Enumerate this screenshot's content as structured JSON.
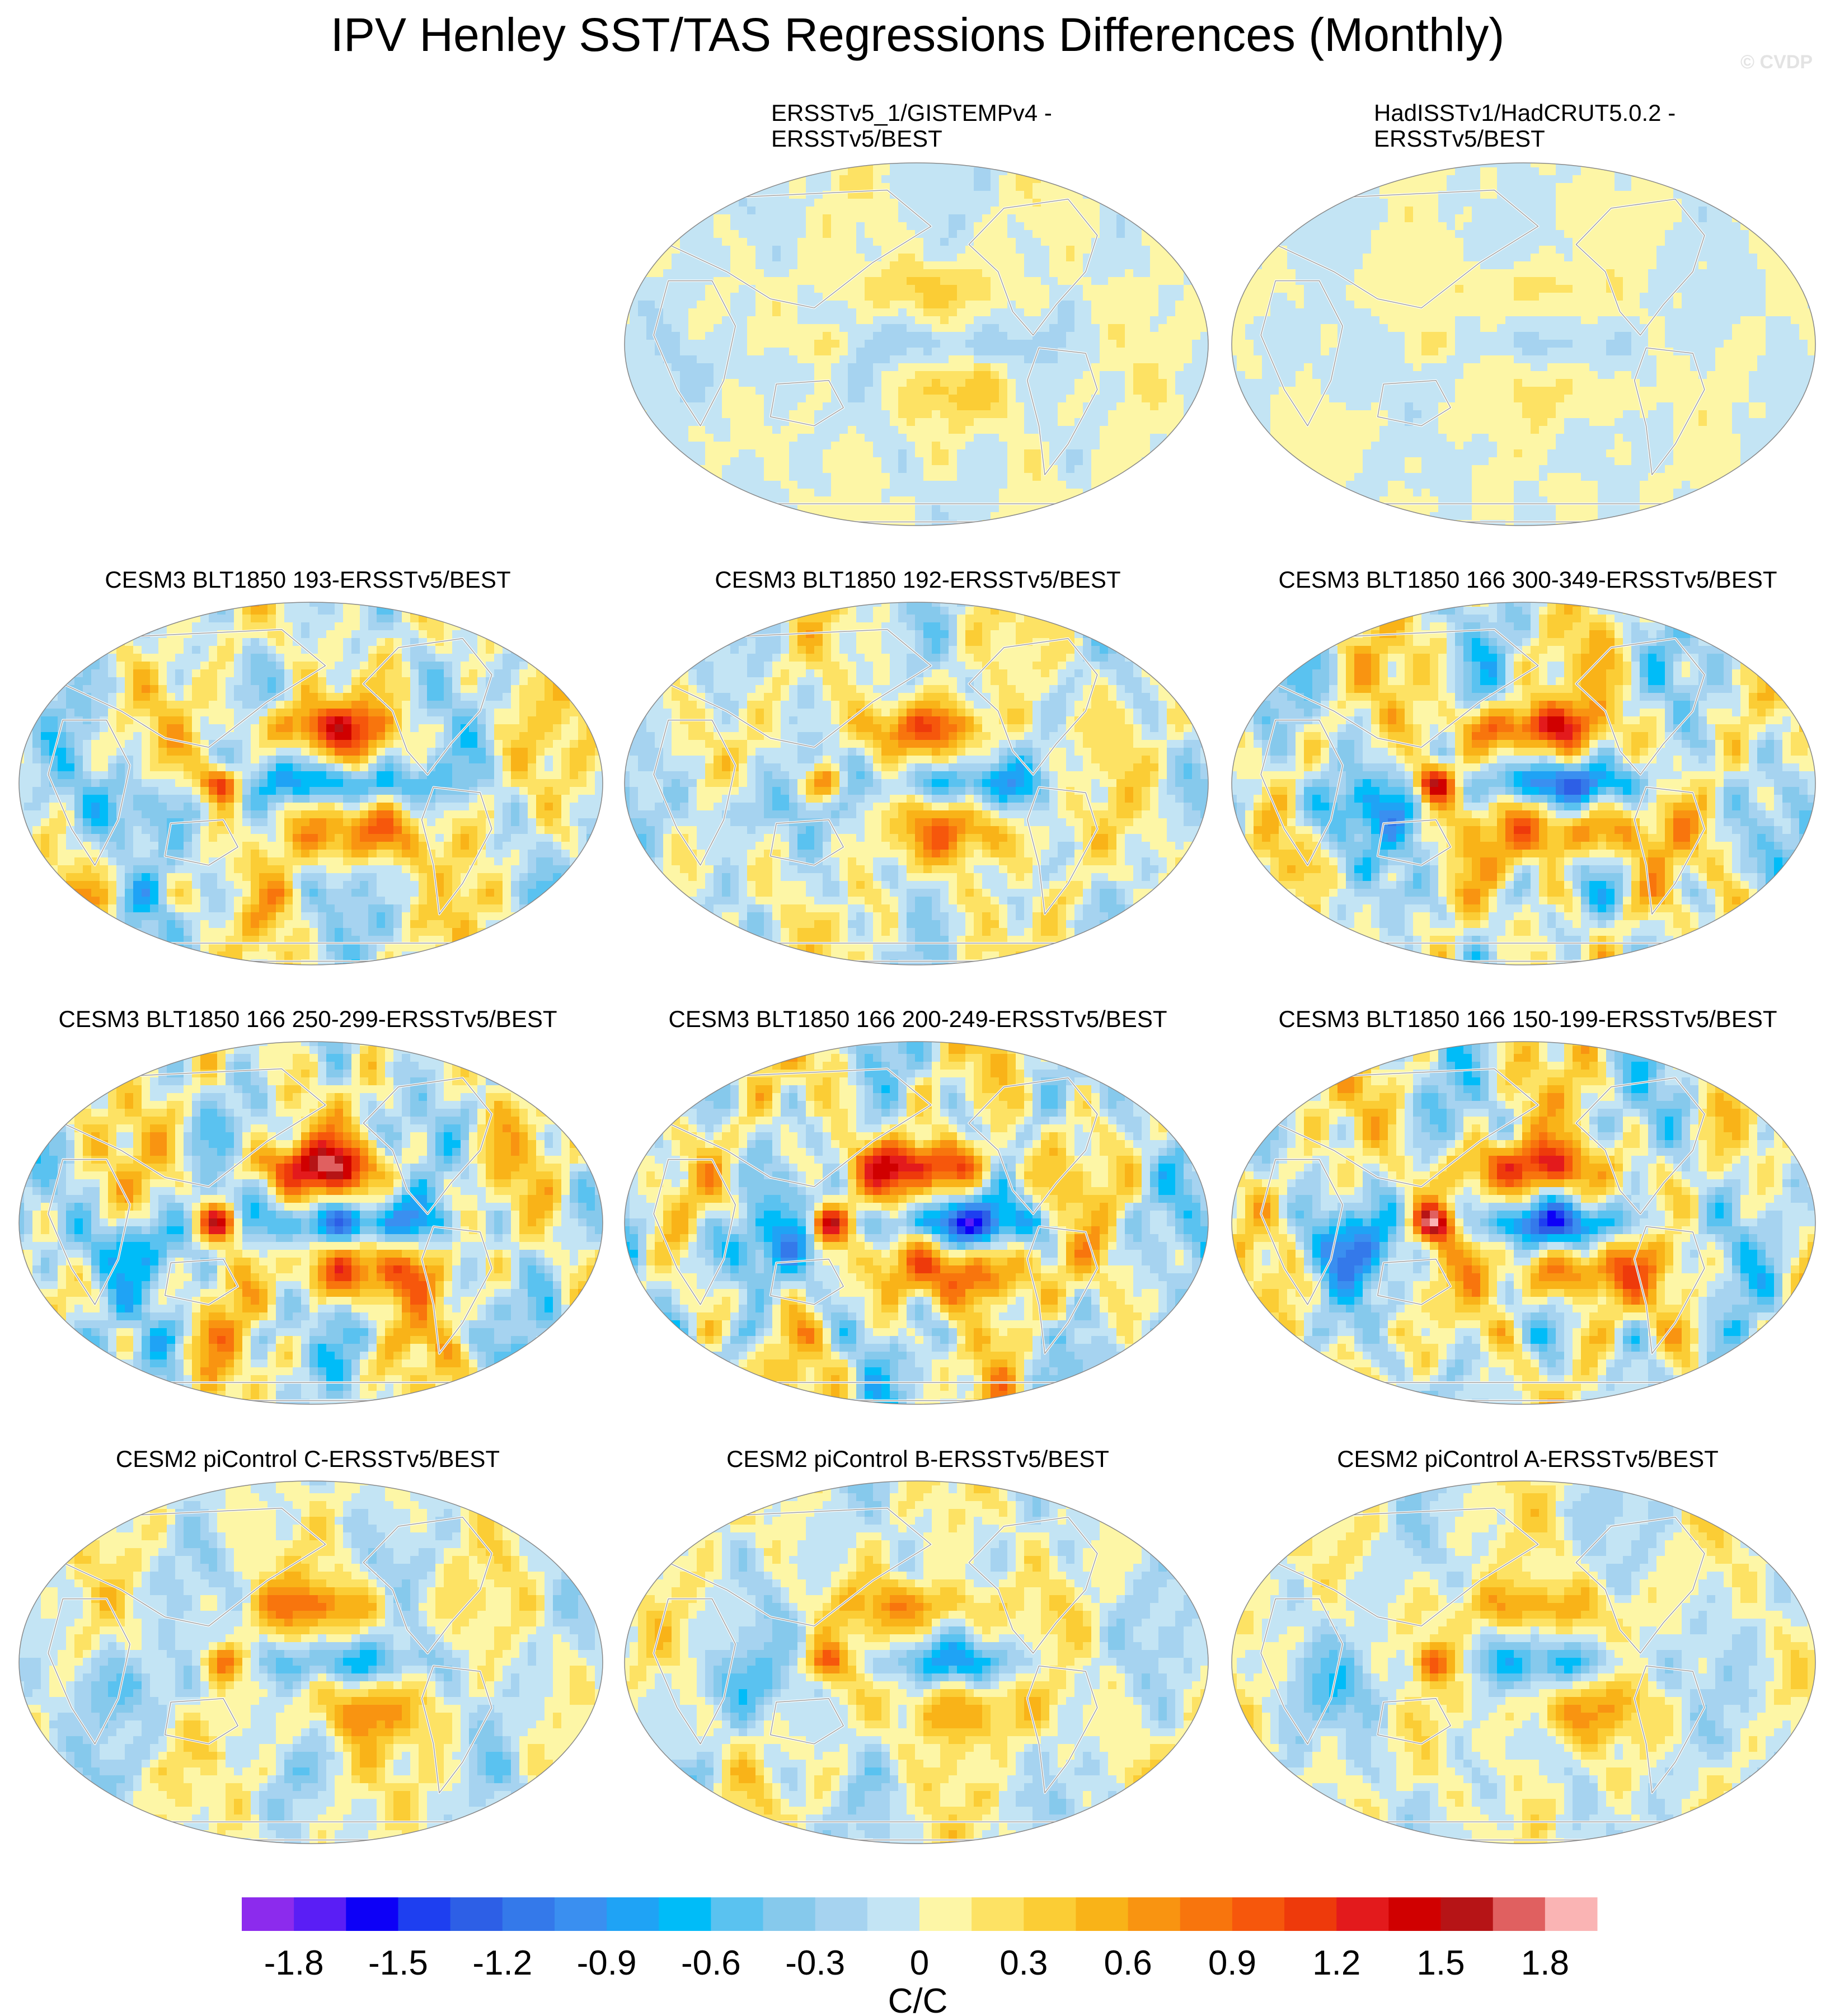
{
  "figure": {
    "title": "IPV Henley SST/TAS Regressions Differences (Monthly)",
    "watermark": "© CVDP"
  },
  "panels": [
    {
      "id": "p-ersst-gistemp",
      "row": 0,
      "col": 1,
      "title_lines": [
        "ERSSTv5_1/GISTEMPv4 -",
        "ERSSTv5/BEST"
      ],
      "pattern_amplitude": 0.5
    },
    {
      "id": "p-hadisst-hadcrut",
      "row": 0,
      "col": 2,
      "title_lines": [
        "HadISSTv1/HadCRUT5.0.2 -",
        "ERSSTv5/BEST"
      ],
      "pattern_amplitude": 0.3
    },
    {
      "id": "p-cesm3-193",
      "row": 1,
      "col": 0,
      "title_lines": [
        "CESM3 BLT1850 193-ERSSTv5/BEST"
      ],
      "pattern_amplitude": 1.5
    },
    {
      "id": "p-cesm3-192",
      "row": 1,
      "col": 1,
      "title_lines": [
        "CESM3 BLT1850 192-ERSSTv5/BEST"
      ],
      "pattern_amplitude": 1.2
    },
    {
      "id": "p-cesm3-166-300",
      "row": 1,
      "col": 2,
      "title_lines": [
        "CESM3 BLT1850 166 300-349-ERSSTv5/BEST"
      ],
      "pattern_amplitude": 1.7
    },
    {
      "id": "p-cesm3-166-250",
      "row": 2,
      "col": 0,
      "title_lines": [
        "CESM3 BLT1850 166 250-299-ERSSTv5/BEST"
      ],
      "pattern_amplitude": 1.8
    },
    {
      "id": "p-cesm3-166-200",
      "row": 2,
      "col": 1,
      "title_lines": [
        "CESM3 BLT1850 166 200-249-ERSSTv5/BEST"
      ],
      "pattern_amplitude": 1.8
    },
    {
      "id": "p-cesm3-166-150",
      "row": 2,
      "col": 2,
      "title_lines": [
        "CESM3 BLT1850 166 150-199-ERSSTv5/BEST"
      ],
      "pattern_amplitude": 1.7
    },
    {
      "id": "p-cesm2-c",
      "row": 3,
      "col": 0,
      "title_lines": [
        "CESM2 piControl C-ERSSTv5/BEST"
      ],
      "pattern_amplitude": 1.0
    },
    {
      "id": "p-cesm2-b",
      "row": 3,
      "col": 1,
      "title_lines": [
        "CESM2 piControl B-ERSSTv5/BEST"
      ],
      "pattern_amplitude": 1.0
    },
    {
      "id": "p-cesm2-a",
      "row": 3,
      "col": 2,
      "title_lines": [
        "CESM2 piControl A-ERSSTv5/BEST"
      ],
      "pattern_amplitude": 0.9
    }
  ],
  "colorbar": {
    "units": "C/C",
    "tick_labels": [
      "-1.8",
      "-1.5",
      "-1.2",
      "-0.9",
      "-0.6",
      "-0.3",
      "0",
      "0.3",
      "0.6",
      "0.9",
      "1.2",
      "1.5",
      "1.8"
    ],
    "colors": [
      "#8c2bed",
      "#5a1ef5",
      "#0d00f7",
      "#1e3ff0",
      "#2d5fe6",
      "#3479ea",
      "#3a8ff0",
      "#1fa3f5",
      "#00bcf8",
      "#5ac2f0",
      "#86c9ec",
      "#a6d3f0",
      "#c3e4f4",
      "#fdf6a6",
      "#fde264",
      "#fbcd35",
      "#f9b318",
      "#f99411",
      "#f8750d",
      "#f6570c",
      "#ee3a0b",
      "#e31a1c",
      "#d00000",
      "#b61416",
      "#e06060",
      "#fab4b4"
    ]
  }
}
